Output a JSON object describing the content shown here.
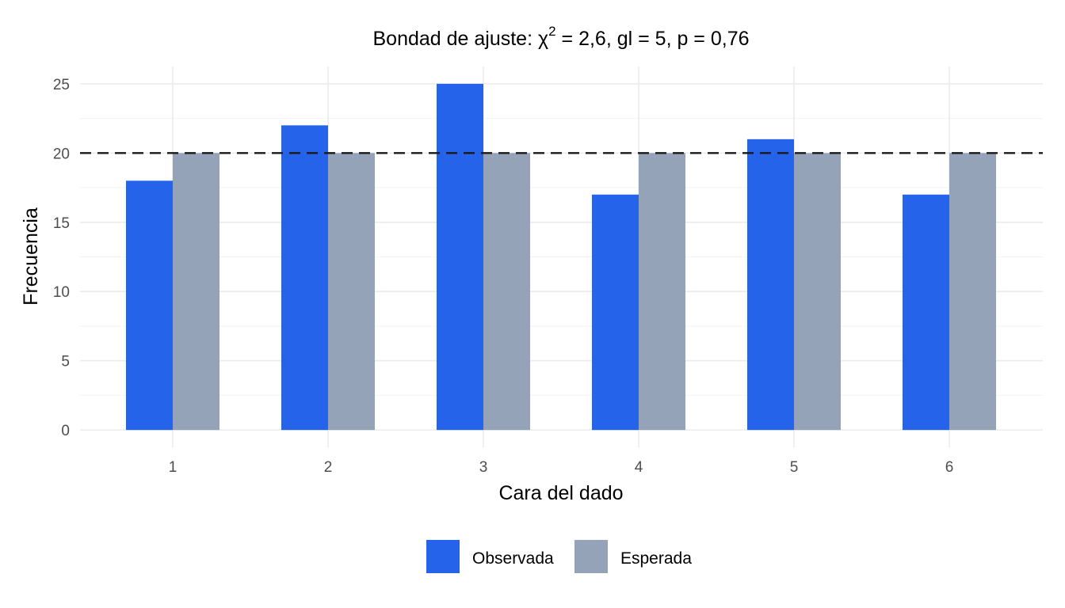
{
  "chart_data": {
    "type": "bar",
    "title": {
      "prefix": "Bondad de ajuste: ",
      "symbol": "χ",
      "superscript": "2",
      "suffix": " = 2,6, gl = 5, p = 0,76"
    },
    "xlabel": "Cara del dado",
    "ylabel": "Frecuencia",
    "categories": [
      "1",
      "2",
      "3",
      "4",
      "5",
      "6"
    ],
    "series": [
      {
        "name": "Observada",
        "color": "#2563eb",
        "values": [
          18,
          22,
          25,
          17,
          21,
          17
        ]
      },
      {
        "name": "Esperada",
        "color": "#94a3b8",
        "values": [
          20,
          20,
          20,
          20,
          20,
          20
        ]
      }
    ],
    "reference_line": {
      "y": 20,
      "style": "dashed",
      "color": "#1a1a1a"
    },
    "yticks": [
      0,
      5,
      10,
      15,
      20,
      25
    ],
    "ylim": [
      -1.25,
      26.25
    ],
    "grid": true,
    "legend_position": "bottom"
  }
}
